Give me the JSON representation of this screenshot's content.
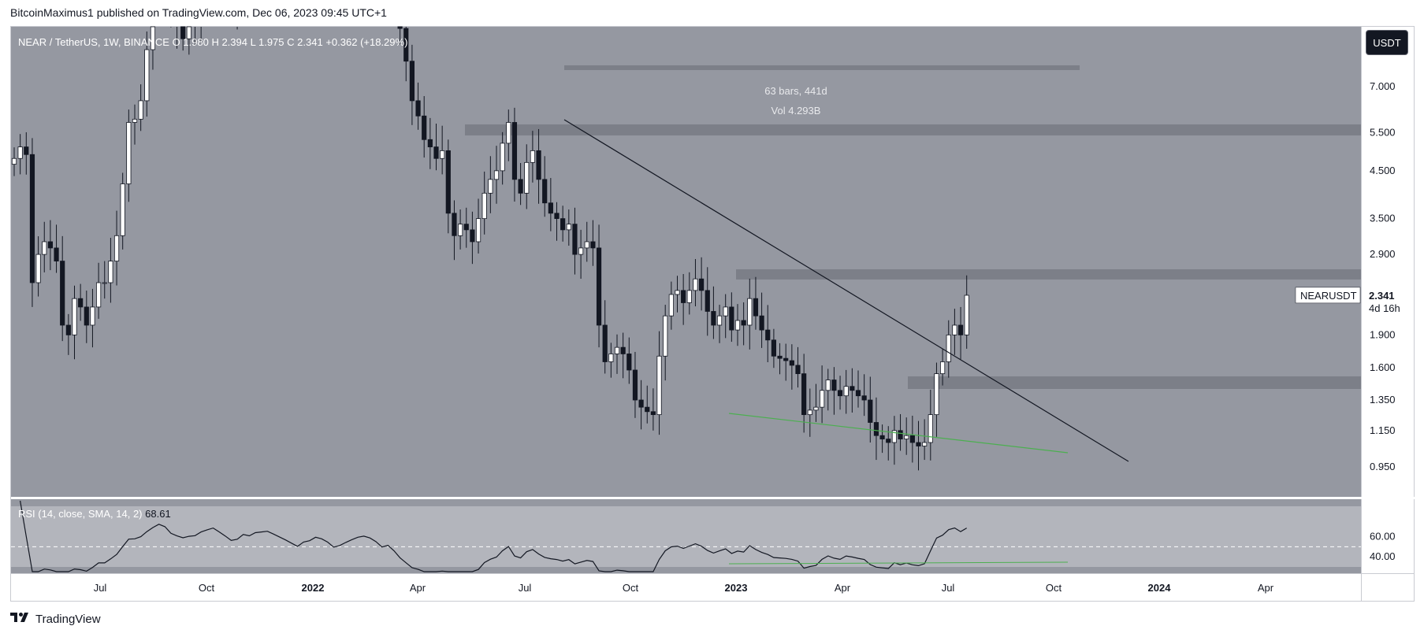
{
  "header": {
    "published": "BitcoinMaximus1 published on TradingView.com, Dec 06, 2023 09:45 UTC+1"
  },
  "legend": {
    "symbol": "NEAR / TetherUS, 1W, BINANCE",
    "open": "O 1.980",
    "high": "H 2.394",
    "low": "L 1.975",
    "close": "C 2.341",
    "change": "+0.362 (+18.29%)"
  },
  "rsi_legend": {
    "label": "RSI (14, close, SMA, 14, 2)",
    "value": "68.61"
  },
  "currency": "USDT",
  "measure": {
    "bars": "63 bars, 441d",
    "vol": "Vol 4.293B"
  },
  "price_tag": {
    "symbol": "NEARUSDT",
    "price": "2.341",
    "countdown": "4d 16h"
  },
  "footer": {
    "brand": "TradingView"
  },
  "colors": {
    "pane_bg": "#9598a1",
    "zone": "#7c7f88",
    "candle_up": "#ffffff",
    "candle_down": "#131722",
    "trendline": "#131722",
    "support_line": "#4caf50",
    "rsi_band": "#b3b5bc"
  },
  "chart_data": {
    "type": "candlestick",
    "scale": "log",
    "y_ticks": [
      "7.000",
      "5.500",
      "4.500",
      "3.500",
      "2.900",
      "1.900",
      "1.600",
      "1.350",
      "1.150",
      "0.950"
    ],
    "x_ticks": [
      {
        "label": "Jul",
        "bold": false
      },
      {
        "label": "Oct",
        "bold": false
      },
      {
        "label": "2022",
        "bold": true
      },
      {
        "label": "Apr",
        "bold": false
      },
      {
        "label": "Jul",
        "bold": false
      },
      {
        "label": "Oct",
        "bold": false
      },
      {
        "label": "2023",
        "bold": true
      },
      {
        "label": "Apr",
        "bold": false
      },
      {
        "label": "Jul",
        "bold": false
      },
      {
        "label": "Oct",
        "bold": false
      },
      {
        "label": "2024",
        "bold": true
      },
      {
        "label": "Apr",
        "bold": false
      }
    ],
    "close_series": [
      4.8,
      5.1,
      4.9,
      2.5,
      2.9,
      3.1,
      3.0,
      2.8,
      2.0,
      1.9,
      2.3,
      2.2,
      2.0,
      2.2,
      2.5,
      2.5,
      2.8,
      3.2,
      4.2,
      5.8,
      5.9,
      6.5,
      8.5,
      11.0,
      14.0,
      13.0,
      10.5,
      9.6,
      9.0,
      9.7,
      10.0,
      12.0,
      13.5,
      15.0,
      13.5,
      12.0,
      10.5,
      11.0,
      13.5,
      13.0,
      15.0,
      15.5,
      16.0,
      15.0,
      14.0,
      13.0,
      12.0,
      11.0,
      12.5,
      13.0,
      14.5,
      14.0,
      13.0,
      11.5,
      12.0,
      13.0,
      14.0,
      15.0,
      15.5,
      15.0,
      14.0,
      12.5,
      13.0,
      11.5,
      9.5,
      8.0,
      6.5,
      6.0,
      5.3,
      5.1,
      4.8,
      5.0,
      3.6,
      3.2,
      3.4,
      3.3,
      3.1,
      3.5,
      4.0,
      4.3,
      4.5,
      5.2,
      5.8,
      4.3,
      4.0,
      4.7,
      5.0,
      4.3,
      3.8,
      3.6,
      3.5,
      3.3,
      3.4,
      2.9,
      3.0,
      3.1,
      3.0,
      2.0,
      1.65,
      1.72,
      1.78,
      1.72,
      1.58,
      1.35,
      1.3,
      1.27,
      1.25,
      1.7,
      2.1,
      2.35,
      2.4,
      2.25,
      2.4,
      2.55,
      2.4,
      2.15,
      2.0,
      2.1,
      2.2,
      1.95,
      2.05,
      2.0,
      2.3,
      2.1,
      1.95,
      1.85,
      1.7,
      1.68,
      1.66,
      1.62,
      1.55,
      1.25,
      1.28,
      1.3,
      1.42,
      1.5,
      1.42,
      1.38,
      1.45,
      1.42,
      1.38,
      1.35,
      1.2,
      1.12,
      1.1,
      1.08,
      1.15,
      1.1,
      1.12,
      1.08,
      1.06,
      1.08,
      1.25,
      1.55,
      1.65,
      1.9,
      2.0,
      1.9,
      2.34
    ],
    "rsi_levels": [
      "60.00",
      "40.00"
    ],
    "rsi_last": 68.61
  }
}
